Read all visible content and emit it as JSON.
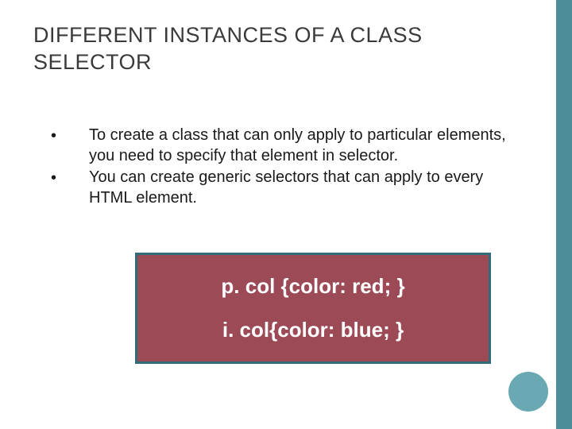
{
  "colors": {
    "side_bar": "#4c8d99",
    "title_text": "#3a3a3a",
    "bullet_text": "#1a1a1a",
    "box_fill": "#9d4a57",
    "box_border": "#2f6d78",
    "code_text": "#ffffff",
    "circle_fill": "#6aa9b3",
    "background": "#ffffff"
  },
  "title": "DIFFERENT INSTANCES OF A CLASS SELECTOR",
  "bullets": [
    "To create a class that can only apply to particular elements, you need to specify that element in selector.",
    " You can create generic selectors that can apply to every HTML element."
  ],
  "code": {
    "line1": "p. col {color: red; }",
    "line2": "i. col{color: blue; }"
  }
}
